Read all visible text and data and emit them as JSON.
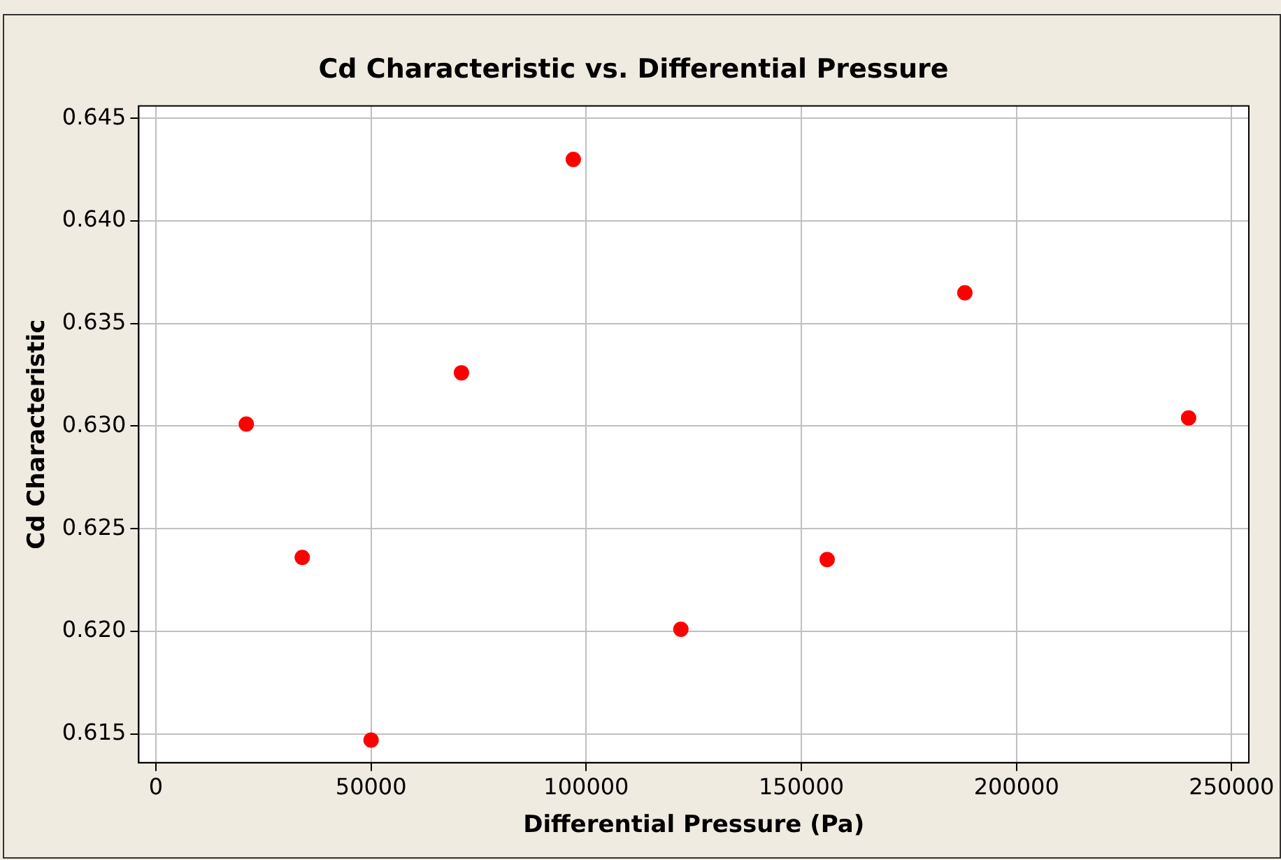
{
  "chart_data": {
    "type": "scatter",
    "title": "Cd Characteristic vs. Differential Pressure",
    "xlabel": "Differential Pressure (Pa)",
    "ylabel": "Cd Characteristic",
    "x": [
      21000,
      34000,
      50000,
      71000,
      97000,
      122000,
      156000,
      188000,
      240000
    ],
    "series": [
      {
        "color": "#ff0000",
        "values": [
          0.6301,
          0.6236,
          0.6147,
          0.6326,
          0.643,
          0.6201,
          0.6235,
          0.6365,
          0.6304
        ]
      }
    ],
    "xlim": [
      -4000,
      254000
    ],
    "ylim": [
      0.6136,
      0.6456
    ],
    "xticks": [
      0,
      50000,
      100000,
      150000,
      200000,
      250000
    ],
    "yticks": [
      {
        "value": 0.615,
        "label": "0.615"
      },
      {
        "value": 0.62,
        "label": "0.620"
      },
      {
        "value": 0.625,
        "label": "0.625"
      },
      {
        "value": 0.63,
        "label": "0.630"
      },
      {
        "value": 0.635,
        "label": "0.635"
      },
      {
        "value": 0.64,
        "label": "0.640"
      },
      {
        "value": 0.645,
        "label": "0.645"
      }
    ],
    "grid": true,
    "marker": "circle",
    "legend": false
  }
}
